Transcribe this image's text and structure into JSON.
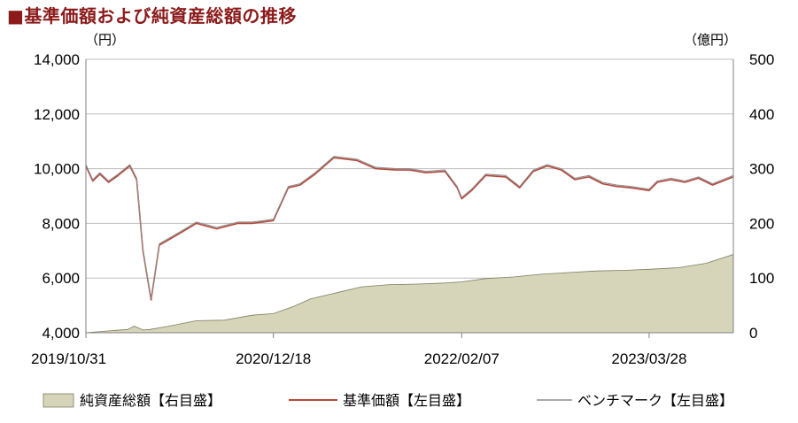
{
  "title": "■基準価額および純資産総額の推移",
  "chart_data": {
    "type": "line",
    "left_unit": "（円）",
    "right_unit": "（億円）",
    "ylim_left": [
      4000,
      14000
    ],
    "yticks_left": [
      "4,000",
      "6,000",
      "8,000",
      "10,000",
      "12,000",
      "14,000"
    ],
    "ylim_right": [
      0,
      500
    ],
    "yticks_right": [
      "0",
      "100",
      "200",
      "300",
      "400",
      "500"
    ],
    "x_ticks": [
      "2019/10/31",
      "2020/12/18",
      "2022/02/07",
      "2023/03/28"
    ],
    "grid": "horizontal",
    "legend_position": "bottom",
    "series": [
      {
        "name": "純資産総額【右目盛】",
        "axis": "right",
        "style": "area",
        "color": "#d6d4b9",
        "x": [
          "2019-10-31",
          "2019-12-15",
          "2020-01-31",
          "2020-02-15",
          "2020-03-05",
          "2020-03-20",
          "2020-05-01",
          "2020-07-01",
          "2020-09-01",
          "2020-11-01",
          "2020-12-18",
          "2021-02-01",
          "2021-03-10",
          "2021-05-01",
          "2021-07-01",
          "2021-09-01",
          "2021-11-01",
          "2022-01-01",
          "2022-02-07",
          "2022-04-01",
          "2022-06-01",
          "2022-08-01",
          "2022-10-01",
          "2022-12-01",
          "2023-02-01",
          "2023-03-28",
          "2023-06-01",
          "2023-08-01",
          "2023-09-30"
        ],
        "values": [
          0,
          3,
          6,
          12,
          5,
          6,
          12,
          22,
          23,
          32,
          35,
          48,
          62,
          72,
          84,
          88,
          89,
          91,
          93,
          99,
          102,
          107,
          110,
          113,
          114,
          116,
          119,
          127,
          143
        ]
      },
      {
        "name": "基準価額【左目盛】",
        "axis": "left",
        "style": "line",
        "color": "#b5473a",
        "x": [
          "2019-10-31",
          "2019-11-15",
          "2019-12-01",
          "2019-12-20",
          "2020-01-10",
          "2020-02-05",
          "2020-02-20",
          "2020-03-05",
          "2020-03-23",
          "2020-04-10",
          "2020-05-01",
          "2020-06-01",
          "2020-07-01",
          "2020-08-15",
          "2020-10-01",
          "2020-11-01",
          "2020-12-18",
          "2021-01-20",
          "2021-02-15",
          "2021-03-20",
          "2021-05-01",
          "2021-06-20",
          "2021-08-01",
          "2021-09-15",
          "2021-10-15",
          "2021-11-20",
          "2022-01-01",
          "2022-01-28",
          "2022-02-07",
          "2022-03-01",
          "2022-04-01",
          "2022-05-15",
          "2022-06-15",
          "2022-07-15",
          "2022-08-15",
          "2022-09-15",
          "2022-10-15",
          "2022-11-15",
          "2022-12-15",
          "2023-01-15",
          "2023-02-15",
          "2023-03-28",
          "2023-04-15",
          "2023-05-15",
          "2023-06-15",
          "2023-07-15",
          "2023-08-15",
          "2023-09-30"
        ],
        "values": [
          10100,
          9550,
          9800,
          9500,
          9750,
          10100,
          9600,
          7000,
          5200,
          7200,
          7400,
          7700,
          8000,
          7800,
          8000,
          8000,
          8100,
          9300,
          9400,
          9800,
          10400,
          10300,
          10000,
          9950,
          9950,
          9850,
          9900,
          9300,
          8900,
          9200,
          9750,
          9700,
          9300,
          9900,
          10100,
          9950,
          9600,
          9700,
          9450,
          9350,
          9300,
          9200,
          9500,
          9600,
          9500,
          9650,
          9400,
          9700
        ]
      },
      {
        "name": "ベンチマーク【左目盛】",
        "axis": "left",
        "style": "line",
        "color": "#8f8f8f",
        "x": [
          "2019-10-31",
          "2019-11-15",
          "2019-12-01",
          "2019-12-20",
          "2020-01-10",
          "2020-02-05",
          "2020-02-20",
          "2020-03-05",
          "2020-03-23",
          "2020-04-10",
          "2020-05-01",
          "2020-06-01",
          "2020-07-01",
          "2020-08-15",
          "2020-10-01",
          "2020-11-01",
          "2020-12-18",
          "2021-01-20",
          "2021-02-15",
          "2021-03-20",
          "2021-05-01",
          "2021-06-20",
          "2021-08-01",
          "2021-09-15",
          "2021-10-15",
          "2021-11-20",
          "2022-01-01",
          "2022-01-28",
          "2022-02-07",
          "2022-03-01",
          "2022-04-01",
          "2022-05-15",
          "2022-06-15",
          "2022-07-15",
          "2022-08-15",
          "2022-09-15",
          "2022-10-15",
          "2022-11-15",
          "2022-12-15",
          "2023-01-15",
          "2023-02-15",
          "2023-03-28",
          "2023-04-15",
          "2023-05-15",
          "2023-06-15",
          "2023-07-15",
          "2023-08-15",
          "2023-09-30"
        ],
        "values": [
          10150,
          9600,
          9850,
          9550,
          9800,
          10150,
          9650,
          7050,
          5250,
          7250,
          7450,
          7750,
          8050,
          7850,
          8050,
          8050,
          8150,
          9350,
          9450,
          9850,
          10450,
          10350,
          10050,
          10000,
          10000,
          9900,
          9950,
          9350,
          8950,
          9250,
          9800,
          9750,
          9350,
          9950,
          10150,
          10000,
          9650,
          9750,
          9500,
          9400,
          9350,
          9250,
          9550,
          9650,
          9550,
          9700,
          9450,
          9750
        ]
      }
    ]
  }
}
